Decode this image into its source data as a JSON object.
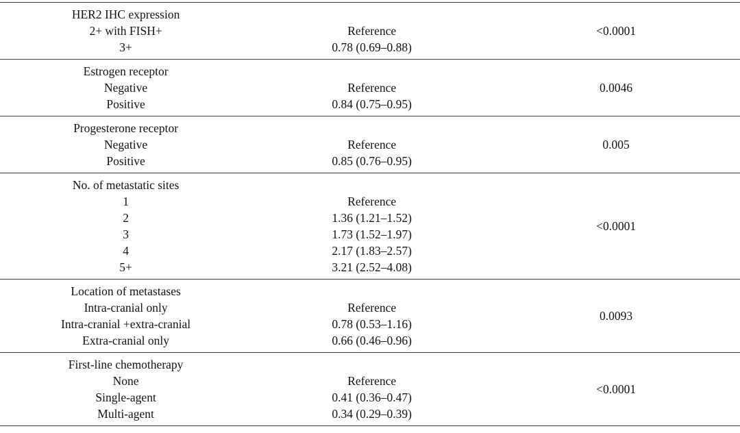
{
  "table": {
    "background": "#ffffff",
    "rule_color": "#3c3c3c",
    "text_color": "#131313",
    "columns": [
      "variable",
      "hazard_ratio_95ci",
      "p_value"
    ],
    "sections": [
      {
        "header": "HER2 IHC expression",
        "rows": [
          {
            "label": "2+ with FISH+",
            "value": "Reference"
          },
          {
            "label": "3+",
            "value": "0.78 (0.69–0.88)"
          }
        ],
        "p_value": "<0.0001"
      },
      {
        "header": "Estrogen receptor",
        "rows": [
          {
            "label": "Negative",
            "value": "Reference"
          },
          {
            "label": "Positive",
            "value": "0.84 (0.75–0.95)"
          }
        ],
        "p_value": "0.0046"
      },
      {
        "header": "Progesterone receptor",
        "rows": [
          {
            "label": "Negative",
            "value": "Reference"
          },
          {
            "label": "Positive",
            "value": "0.85 (0.76–0.95)"
          }
        ],
        "p_value": "0.005"
      },
      {
        "header": "No. of metastatic sites",
        "rows": [
          {
            "label": "1",
            "value": "Reference"
          },
          {
            "label": "2",
            "value": "1.36 (1.21–1.52)"
          },
          {
            "label": "3",
            "value": "1.73 (1.52–1.97)"
          },
          {
            "label": "4",
            "value": "2.17 (1.83–2.57)"
          },
          {
            "label": "5+",
            "value": "3.21 (2.52–4.08)"
          }
        ],
        "p_value": "<0.0001"
      },
      {
        "header": "Location of metastases",
        "rows": [
          {
            "label": "Intra-cranial only",
            "value": "Reference"
          },
          {
            "label": "Intra-cranial +extra-cranial",
            "value": "0.78 (0.53–1.16)"
          },
          {
            "label": "Extra-cranial only",
            "value": "0.66 (0.46–0.96)"
          }
        ],
        "p_value": "0.0093"
      },
      {
        "header": "First-line chemotherapy",
        "rows": [
          {
            "label": "None",
            "value": "Reference"
          },
          {
            "label": "Single-agent",
            "value": "0.41 (0.36–0.47)"
          },
          {
            "label": "Multi-agent",
            "value": "0.34 (0.29–0.39)"
          }
        ],
        "p_value": "<0.0001"
      }
    ]
  }
}
